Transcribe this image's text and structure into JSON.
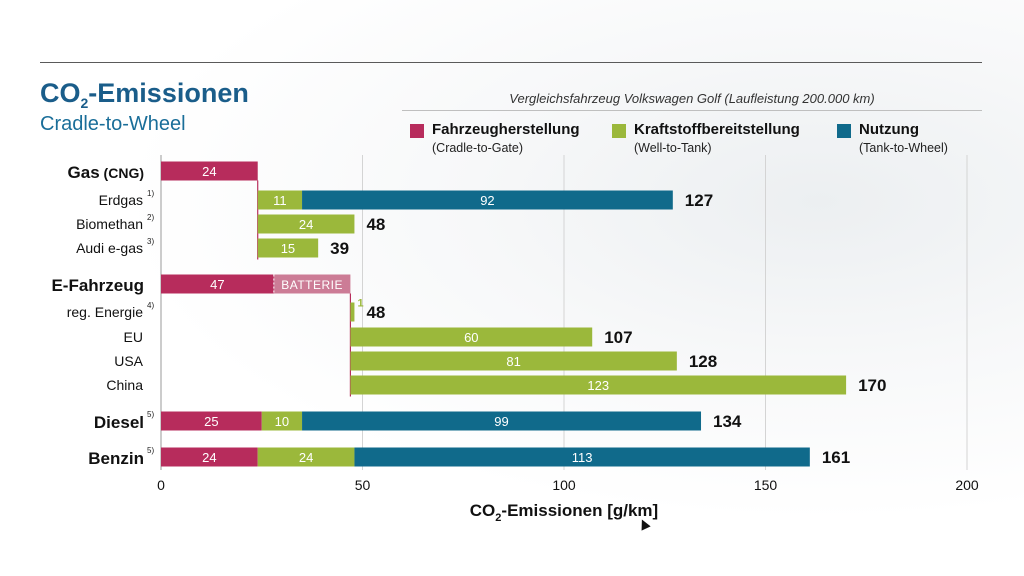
{
  "header": {
    "title_main": "CO",
    "title_sub": "2",
    "title_rest": "-Emissionen",
    "subtitle": "Cradle-to-Wheel",
    "note": "Vergleichsfahrzeug Volkswagen Golf (Laufleistung 200.000 km)"
  },
  "legend": [
    {
      "label": "Fahrzeugherstellung",
      "sub": "(Cradle-to-Gate)",
      "color": "#b72c5c"
    },
    {
      "label": "Kraftstoffbereitstellung",
      "sub": "(Well-to-Tank)",
      "color": "#9bb83b"
    },
    {
      "label": "Nutzung",
      "sub": "(Tank-to-Wheel)",
      "color": "#106a8b"
    }
  ],
  "colors": {
    "manufacturing": "#b72c5c",
    "fuel": "#9bb83b",
    "use": "#106a8b",
    "battery": "#cc7c96"
  },
  "chart_data": {
    "type": "bar",
    "orientation": "horizontal",
    "stacked": true,
    "xlabel_main": "CO",
    "xlabel_sub": "2",
    "xlabel_rest": "-Emissionen [g/km]",
    "xlim": [
      0,
      200
    ],
    "xticks": [
      "0",
      "50",
      "100",
      "150",
      "200"
    ],
    "grid": true,
    "rows": [
      {
        "label": "Gas",
        "label_extra": "(CNG)",
        "group": true,
        "segments": [
          {
            "series": "manufacturing",
            "start": 0,
            "value": 24,
            "label": "24"
          }
        ],
        "total": ""
      },
      {
        "label": "Erdgas",
        "footnote": "1)",
        "group": false,
        "segments": [
          {
            "series": "fuel",
            "start": 24,
            "value": 11,
            "label": "11"
          },
          {
            "series": "use",
            "start": 35,
            "value": 92,
            "label": "92"
          }
        ],
        "total": "127"
      },
      {
        "label": "Biomethan",
        "footnote": "2)",
        "group": false,
        "segments": [
          {
            "series": "fuel",
            "start": 24,
            "value": 24,
            "label": "24"
          }
        ],
        "total": "48"
      },
      {
        "label": "Audi e-gas",
        "footnote": "3)",
        "group": false,
        "segments": [
          {
            "series": "fuel",
            "start": 24,
            "value": 15,
            "label": "15"
          }
        ],
        "total": "39"
      },
      {
        "label": "E-Fahrzeug",
        "group": true,
        "segments": [
          {
            "series": "manufacturing",
            "start": 0,
            "value": 28,
            "label": "47"
          },
          {
            "series": "battery",
            "start": 28,
            "value": 19,
            "label": "BATTERIE"
          }
        ],
        "total": ""
      },
      {
        "label": "reg. Energie",
        "footnote": "4)",
        "group": false,
        "segments": [
          {
            "series": "fuel",
            "start": 47,
            "value": 1,
            "label": "1"
          }
        ],
        "total": "48"
      },
      {
        "label": "EU",
        "group": false,
        "segments": [
          {
            "series": "fuel",
            "start": 47,
            "value": 60,
            "label": "60"
          }
        ],
        "total": "107"
      },
      {
        "label": "USA",
        "group": false,
        "segments": [
          {
            "series": "fuel",
            "start": 47,
            "value": 81,
            "label": "81"
          }
        ],
        "total": "128"
      },
      {
        "label": "China",
        "group": false,
        "segments": [
          {
            "series": "fuel",
            "start": 47,
            "value": 123,
            "label": "123"
          }
        ],
        "total": "170"
      },
      {
        "label": "Diesel",
        "footnote": "5)",
        "group": true,
        "segments": [
          {
            "series": "manufacturing",
            "start": 0,
            "value": 25,
            "label": "25"
          },
          {
            "series": "fuel",
            "start": 25,
            "value": 10,
            "label": "10"
          },
          {
            "series": "use",
            "start": 35,
            "value": 99,
            "label": "99"
          }
        ],
        "total": "134"
      },
      {
        "label": "Benzin",
        "footnote": "5)",
        "group": true,
        "segments": [
          {
            "series": "manufacturing",
            "start": 0,
            "value": 24,
            "label": "24"
          },
          {
            "series": "fuel",
            "start": 24,
            "value": 24,
            "label": "24"
          },
          {
            "series": "use",
            "start": 48,
            "value": 113,
            "label": "113"
          }
        ],
        "total": "161"
      }
    ]
  }
}
